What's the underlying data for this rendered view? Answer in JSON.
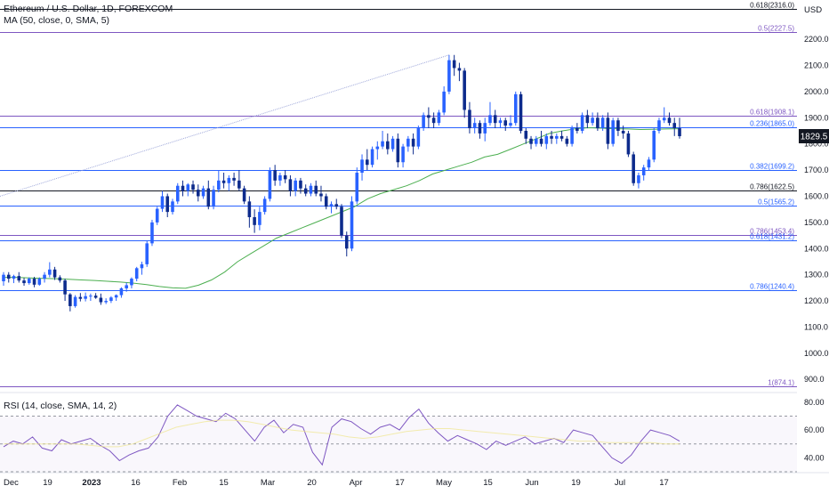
{
  "header": {
    "title": "Ethereum / U.S. Dollar, 1D, FOREXCOM",
    "indicator": "MA (50, close, 0, SMA, 5)",
    "currency": "USD"
  },
  "rsi": {
    "label": "RSI (14, close, SMA, 14, 2)",
    "ticks": [
      "80.00",
      "60.00",
      "40.00"
    ]
  },
  "chart_data": {
    "type": "candlestick",
    "symbol": "ETHUSD",
    "ylim": [
      860,
      2350
    ],
    "rsi_ylim": [
      30,
      85
    ],
    "price_ticks": [
      "2200.0",
      "2100.0",
      "2000.0",
      "1900.0",
      "1800.0",
      "1700.0",
      "1600.0",
      "1500.0",
      "1400.0",
      "1300.0",
      "1200.0",
      "1100.0",
      "1000.0",
      "900.0"
    ],
    "x_labels": [
      "Dec",
      "19",
      "2023",
      "16",
      "Feb",
      "15",
      "Mar",
      "20",
      "Apr",
      "17",
      "May",
      "15",
      "Jun",
      "19",
      "Jul",
      "17"
    ],
    "current_price": "1829.5",
    "fib_levels": [
      {
        "label": "0.618(2316.0)",
        "value": 2316.0,
        "color": "#131722"
      },
      {
        "label": "0.5(2227.5)",
        "value": 2227.5,
        "color": "#7e57c2"
      },
      {
        "label": "0.618(1908.1)",
        "value": 1908.1,
        "color": "#7e57c2"
      },
      {
        "label": "0.236(1865.0)",
        "value": 1865.0,
        "color": "#2962ff"
      },
      {
        "label": "0.382(1699.2)",
        "value": 1699.2,
        "color": "#2962ff"
      },
      {
        "label": "0.786(1622.5)",
        "value": 1622.5,
        "color": "#131722"
      },
      {
        "label": "0.5(1565.2)",
        "value": 1565.2,
        "color": "#2962ff"
      },
      {
        "label": "0.786(1453.4)",
        "value": 1453.4,
        "color": "#7e57c2"
      },
      {
        "label": "0.618(1431.2)",
        "value": 1431.2,
        "color": "#2962ff"
      },
      {
        "label": "0.786(1240.4)",
        "value": 1240.4,
        "color": "#2962ff"
      },
      {
        "label": "1(874.1)",
        "value": 874.1,
        "color": "#7e57c2"
      }
    ],
    "candles": [
      {
        "o": 1275,
        "h": 1310,
        "l": 1258,
        "c": 1300
      },
      {
        "o": 1300,
        "h": 1310,
        "l": 1270,
        "c": 1285
      },
      {
        "o": 1285,
        "h": 1300,
        "l": 1268,
        "c": 1295
      },
      {
        "o": 1295,
        "h": 1310,
        "l": 1270,
        "c": 1278
      },
      {
        "o": 1278,
        "h": 1288,
        "l": 1258,
        "c": 1268
      },
      {
        "o": 1268,
        "h": 1290,
        "l": 1262,
        "c": 1285
      },
      {
        "o": 1285,
        "h": 1292,
        "l": 1252,
        "c": 1262
      },
      {
        "o": 1262,
        "h": 1290,
        "l": 1258,
        "c": 1285
      },
      {
        "o": 1285,
        "h": 1310,
        "l": 1270,
        "c": 1300
      },
      {
        "o": 1300,
        "h": 1348,
        "l": 1290,
        "c": 1320
      },
      {
        "o": 1320,
        "h": 1330,
        "l": 1280,
        "c": 1290
      },
      {
        "o": 1290,
        "h": 1298,
        "l": 1270,
        "c": 1278
      },
      {
        "o": 1278,
        "h": 1285,
        "l": 1200,
        "c": 1225
      },
      {
        "o": 1225,
        "h": 1230,
        "l": 1160,
        "c": 1180
      },
      {
        "o": 1180,
        "h": 1222,
        "l": 1174,
        "c": 1215
      },
      {
        "o": 1215,
        "h": 1230,
        "l": 1198,
        "c": 1208
      },
      {
        "o": 1208,
        "h": 1232,
        "l": 1198,
        "c": 1218
      },
      {
        "o": 1218,
        "h": 1228,
        "l": 1200,
        "c": 1220
      },
      {
        "o": 1220,
        "h": 1230,
        "l": 1208,
        "c": 1212
      },
      {
        "o": 1212,
        "h": 1228,
        "l": 1185,
        "c": 1195
      },
      {
        "o": 1195,
        "h": 1210,
        "l": 1188,
        "c": 1200
      },
      {
        "o": 1200,
        "h": 1218,
        "l": 1192,
        "c": 1213
      },
      {
        "o": 1213,
        "h": 1225,
        "l": 1200,
        "c": 1222
      },
      {
        "o": 1222,
        "h": 1252,
        "l": 1212,
        "c": 1248
      },
      {
        "o": 1248,
        "h": 1270,
        "l": 1235,
        "c": 1260
      },
      {
        "o": 1260,
        "h": 1290,
        "l": 1248,
        "c": 1285
      },
      {
        "o": 1285,
        "h": 1330,
        "l": 1275,
        "c": 1325
      },
      {
        "o": 1325,
        "h": 1350,
        "l": 1300,
        "c": 1340
      },
      {
        "o": 1340,
        "h": 1430,
        "l": 1330,
        "c": 1420
      },
      {
        "o": 1420,
        "h": 1510,
        "l": 1410,
        "c": 1500
      },
      {
        "o": 1500,
        "h": 1560,
        "l": 1490,
        "c": 1552
      },
      {
        "o": 1552,
        "h": 1620,
        "l": 1540,
        "c": 1600
      },
      {
        "o": 1600,
        "h": 1610,
        "l": 1520,
        "c": 1540
      },
      {
        "o": 1540,
        "h": 1590,
        "l": 1530,
        "c": 1580
      },
      {
        "o": 1580,
        "h": 1650,
        "l": 1570,
        "c": 1640
      },
      {
        "o": 1640,
        "h": 1660,
        "l": 1600,
        "c": 1620
      },
      {
        "o": 1620,
        "h": 1650,
        "l": 1600,
        "c": 1645
      },
      {
        "o": 1645,
        "h": 1660,
        "l": 1610,
        "c": 1625
      },
      {
        "o": 1625,
        "h": 1645,
        "l": 1580,
        "c": 1600
      },
      {
        "o": 1600,
        "h": 1640,
        "l": 1590,
        "c": 1630
      },
      {
        "o": 1630,
        "h": 1660,
        "l": 1550,
        "c": 1560
      },
      {
        "o": 1560,
        "h": 1640,
        "l": 1550,
        "c": 1625
      },
      {
        "o": 1625,
        "h": 1700,
        "l": 1615,
        "c": 1660
      },
      {
        "o": 1660,
        "h": 1690,
        "l": 1630,
        "c": 1650
      },
      {
        "o": 1650,
        "h": 1680,
        "l": 1620,
        "c": 1670
      },
      {
        "o": 1670,
        "h": 1690,
        "l": 1640,
        "c": 1660
      },
      {
        "o": 1660,
        "h": 1700,
        "l": 1620,
        "c": 1630
      },
      {
        "o": 1630,
        "h": 1640,
        "l": 1570,
        "c": 1580
      },
      {
        "o": 1580,
        "h": 1600,
        "l": 1480,
        "c": 1520
      },
      {
        "o": 1520,
        "h": 1550,
        "l": 1460,
        "c": 1490
      },
      {
        "o": 1490,
        "h": 1560,
        "l": 1470,
        "c": 1540
      },
      {
        "o": 1540,
        "h": 1600,
        "l": 1530,
        "c": 1590
      },
      {
        "o": 1590,
        "h": 1710,
        "l": 1580,
        "c": 1700
      },
      {
        "o": 1700,
        "h": 1720,
        "l": 1640,
        "c": 1660
      },
      {
        "o": 1660,
        "h": 1690,
        "l": 1640,
        "c": 1680
      },
      {
        "o": 1680,
        "h": 1700,
        "l": 1650,
        "c": 1665
      },
      {
        "o": 1665,
        "h": 1680,
        "l": 1600,
        "c": 1620
      },
      {
        "o": 1620,
        "h": 1670,
        "l": 1600,
        "c": 1660
      },
      {
        "o": 1660,
        "h": 1670,
        "l": 1610,
        "c": 1630
      },
      {
        "o": 1630,
        "h": 1645,
        "l": 1600,
        "c": 1610
      },
      {
        "o": 1610,
        "h": 1650,
        "l": 1600,
        "c": 1640
      },
      {
        "o": 1640,
        "h": 1660,
        "l": 1600,
        "c": 1610
      },
      {
        "o": 1610,
        "h": 1640,
        "l": 1580,
        "c": 1600
      },
      {
        "o": 1600,
        "h": 1610,
        "l": 1550,
        "c": 1560
      },
      {
        "o": 1560,
        "h": 1580,
        "l": 1535,
        "c": 1570
      },
      {
        "o": 1570,
        "h": 1590,
        "l": 1550,
        "c": 1560
      },
      {
        "o": 1560,
        "h": 1570,
        "l": 1440,
        "c": 1450
      },
      {
        "o": 1450,
        "h": 1465,
        "l": 1370,
        "c": 1400
      },
      {
        "o": 1400,
        "h": 1600,
        "l": 1390,
        "c": 1580
      },
      {
        "o": 1580,
        "h": 1710,
        "l": 1570,
        "c": 1690
      },
      {
        "o": 1690,
        "h": 1760,
        "l": 1660,
        "c": 1740
      },
      {
        "o": 1740,
        "h": 1780,
        "l": 1700,
        "c": 1720
      },
      {
        "o": 1720,
        "h": 1790,
        "l": 1710,
        "c": 1780
      },
      {
        "o": 1780,
        "h": 1810,
        "l": 1740,
        "c": 1790
      },
      {
        "o": 1790,
        "h": 1850,
        "l": 1780,
        "c": 1810
      },
      {
        "o": 1810,
        "h": 1840,
        "l": 1760,
        "c": 1780
      },
      {
        "o": 1780,
        "h": 1830,
        "l": 1770,
        "c": 1820
      },
      {
        "o": 1820,
        "h": 1840,
        "l": 1710,
        "c": 1730
      },
      {
        "o": 1730,
        "h": 1800,
        "l": 1710,
        "c": 1790
      },
      {
        "o": 1790,
        "h": 1830,
        "l": 1770,
        "c": 1820
      },
      {
        "o": 1820,
        "h": 1840,
        "l": 1760,
        "c": 1790
      },
      {
        "o": 1790,
        "h": 1870,
        "l": 1780,
        "c": 1860
      },
      {
        "o": 1860,
        "h": 1920,
        "l": 1850,
        "c": 1910
      },
      {
        "o": 1910,
        "h": 1940,
        "l": 1860,
        "c": 1900
      },
      {
        "o": 1900,
        "h": 1920,
        "l": 1860,
        "c": 1880
      },
      {
        "o": 1880,
        "h": 1930,
        "l": 1870,
        "c": 1920
      },
      {
        "o": 1920,
        "h": 2020,
        "l": 1910,
        "c": 2000
      },
      {
        "o": 2000,
        "h": 2140,
        "l": 1990,
        "c": 2120
      },
      {
        "o": 2120,
        "h": 2140,
        "l": 2060,
        "c": 2090
      },
      {
        "o": 2090,
        "h": 2110,
        "l": 2040,
        "c": 2080
      },
      {
        "o": 2080,
        "h": 2090,
        "l": 1900,
        "c": 1930
      },
      {
        "o": 1930,
        "h": 1960,
        "l": 1840,
        "c": 1860
      },
      {
        "o": 1860,
        "h": 1900,
        "l": 1840,
        "c": 1880
      },
      {
        "o": 1880,
        "h": 1890,
        "l": 1820,
        "c": 1840
      },
      {
        "o": 1840,
        "h": 1900,
        "l": 1810,
        "c": 1880
      },
      {
        "o": 1880,
        "h": 1960,
        "l": 1870,
        "c": 1910
      },
      {
        "o": 1910,
        "h": 1930,
        "l": 1860,
        "c": 1880
      },
      {
        "o": 1880,
        "h": 1900,
        "l": 1860,
        "c": 1890
      },
      {
        "o": 1890,
        "h": 1900,
        "l": 1850,
        "c": 1870
      },
      {
        "o": 1870,
        "h": 1910,
        "l": 1860,
        "c": 1880
      },
      {
        "o": 1880,
        "h": 2000,
        "l": 1870,
        "c": 1990
      },
      {
        "o": 1990,
        "h": 2000,
        "l": 1840,
        "c": 1850
      },
      {
        "o": 1850,
        "h": 1860,
        "l": 1800,
        "c": 1820
      },
      {
        "o": 1820,
        "h": 1830,
        "l": 1780,
        "c": 1800
      },
      {
        "o": 1800,
        "h": 1830,
        "l": 1790,
        "c": 1820
      },
      {
        "o": 1820,
        "h": 1850,
        "l": 1790,
        "c": 1800
      },
      {
        "o": 1800,
        "h": 1840,
        "l": 1780,
        "c": 1830
      },
      {
        "o": 1830,
        "h": 1850,
        "l": 1800,
        "c": 1820
      },
      {
        "o": 1820,
        "h": 1840,
        "l": 1800,
        "c": 1830
      },
      {
        "o": 1830,
        "h": 1850,
        "l": 1810,
        "c": 1820
      },
      {
        "o": 1820,
        "h": 1830,
        "l": 1790,
        "c": 1800
      },
      {
        "o": 1800,
        "h": 1870,
        "l": 1790,
        "c": 1860
      },
      {
        "o": 1860,
        "h": 1880,
        "l": 1840,
        "c": 1850
      },
      {
        "o": 1850,
        "h": 1920,
        "l": 1840,
        "c": 1910
      },
      {
        "o": 1910,
        "h": 1930,
        "l": 1860,
        "c": 1880
      },
      {
        "o": 1880,
        "h": 1920,
        "l": 1870,
        "c": 1900
      },
      {
        "o": 1900,
        "h": 1920,
        "l": 1850,
        "c": 1860
      },
      {
        "o": 1860,
        "h": 1910,
        "l": 1850,
        "c": 1900
      },
      {
        "o": 1900,
        "h": 1920,
        "l": 1780,
        "c": 1800
      },
      {
        "o": 1800,
        "h": 1900,
        "l": 1790,
        "c": 1890
      },
      {
        "o": 1890,
        "h": 1900,
        "l": 1830,
        "c": 1850
      },
      {
        "o": 1850,
        "h": 1870,
        "l": 1820,
        "c": 1840
      },
      {
        "o": 1840,
        "h": 1850,
        "l": 1750,
        "c": 1760
      },
      {
        "o": 1760,
        "h": 1770,
        "l": 1640,
        "c": 1650
      },
      {
        "o": 1650,
        "h": 1690,
        "l": 1630,
        "c": 1680
      },
      {
        "o": 1680,
        "h": 1720,
        "l": 1660,
        "c": 1710
      },
      {
        "o": 1710,
        "h": 1750,
        "l": 1700,
        "c": 1740
      },
      {
        "o": 1740,
        "h": 1860,
        "l": 1730,
        "c": 1850
      },
      {
        "o": 1850,
        "h": 1900,
        "l": 1840,
        "c": 1890
      },
      {
        "o": 1890,
        "h": 1940,
        "l": 1880,
        "c": 1900
      },
      {
        "o": 1900,
        "h": 1920,
        "l": 1870,
        "c": 1880
      },
      {
        "o": 1880,
        "h": 1900,
        "l": 1830,
        "c": 1860
      },
      {
        "o": 1860,
        "h": 1900,
        "l": 1820,
        "c": 1829.5
      }
    ],
    "ma50": [
      1290,
      1290,
      1288,
      1286,
      1285,
      1283,
      1280,
      1278,
      1275,
      1272,
      1268,
      1262,
      1255,
      1250,
      1248,
      1260,
      1280,
      1310,
      1350,
      1380,
      1410,
      1440,
      1460,
      1480,
      1500,
      1520,
      1540,
      1560,
      1590,
      1610,
      1625,
      1640,
      1660,
      1685,
      1700,
      1715,
      1730,
      1750,
      1760,
      1780,
      1800,
      1820,
      1840,
      1850,
      1858,
      1862,
      1860,
      1858,
      1857,
      1855,
      1856,
      1857,
      1858
    ],
    "rsi": [
      48,
      52,
      50,
      55,
      47,
      45,
      53,
      50,
      52,
      54,
      49,
      45,
      38,
      42,
      45,
      47,
      55,
      70,
      78,
      74,
      70,
      68,
      66,
      72,
      68,
      60,
      52,
      62,
      67,
      58,
      64,
      62,
      44,
      35,
      62,
      68,
      66,
      61,
      57,
      62,
      64,
      60,
      69,
      75,
      65,
      58,
      52,
      56,
      53,
      50,
      46,
      52,
      49,
      52,
      55,
      50,
      52,
      54,
      51,
      60,
      58,
      56,
      48,
      40,
      36,
      42,
      52,
      60,
      58,
      56,
      52
    ],
    "rsi_ma": [
      50,
      50,
      50,
      50,
      50,
      50,
      49,
      48,
      48,
      50,
      54,
      58,
      62,
      64,
      66,
      67,
      67,
      66,
      64,
      62,
      60,
      59,
      58,
      57,
      55,
      54,
      55,
      57,
      59,
      60,
      61,
      61,
      60,
      59,
      58,
      57,
      56,
      55,
      54,
      53,
      52,
      52,
      51,
      51,
      51,
      51,
      50,
      50
    ]
  }
}
